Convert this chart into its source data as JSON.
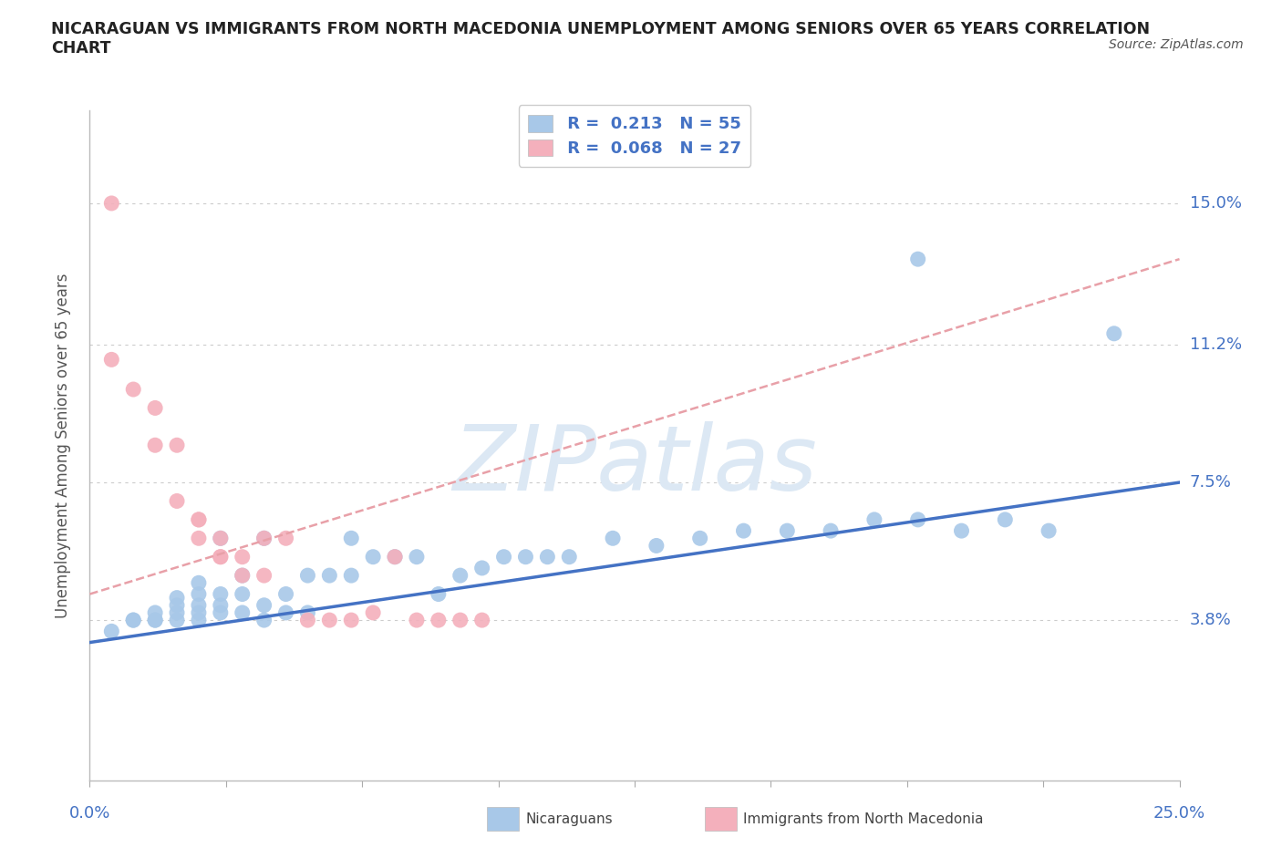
{
  "title": "NICARAGUAN VS IMMIGRANTS FROM NORTH MACEDONIA UNEMPLOYMENT AMONG SENIORS OVER 65 YEARS CORRELATION\nCHART",
  "source": "Source: ZipAtlas.com",
  "ylabel": "Unemployment Among Seniors over 65 years",
  "xlim": [
    0.0,
    0.25
  ],
  "ylim": [
    -0.005,
    0.175
  ],
  "yticks": [
    0.038,
    0.075,
    0.112,
    0.15
  ],
  "ytick_labels": [
    "3.8%",
    "7.5%",
    "11.2%",
    "15.0%"
  ],
  "xticks": [
    0.0,
    0.03125,
    0.0625,
    0.09375,
    0.125,
    0.15625,
    0.1875,
    0.21875,
    0.25
  ],
  "r_blue": "0.213",
  "n_blue": "55",
  "r_pink": "0.068",
  "n_pink": "27",
  "blue_color": "#a8c8e8",
  "pink_color": "#f4b0bc",
  "trend_blue_color": "#4472c4",
  "trend_pink_color": "#e8a0a8",
  "label_color": "#4472c4",
  "watermark_color": "#dce8f4",
  "blue_scatter_x": [
    0.005,
    0.01,
    0.01,
    0.015,
    0.015,
    0.015,
    0.02,
    0.02,
    0.02,
    0.02,
    0.025,
    0.025,
    0.025,
    0.025,
    0.025,
    0.03,
    0.03,
    0.03,
    0.03,
    0.035,
    0.035,
    0.035,
    0.04,
    0.04,
    0.04,
    0.045,
    0.045,
    0.05,
    0.05,
    0.055,
    0.06,
    0.06,
    0.065,
    0.07,
    0.075,
    0.08,
    0.085,
    0.09,
    0.095,
    0.1,
    0.105,
    0.11,
    0.12,
    0.13,
    0.14,
    0.15,
    0.16,
    0.17,
    0.18,
    0.19,
    0.2,
    0.21,
    0.22,
    0.235,
    0.19
  ],
  "blue_scatter_y": [
    0.035,
    0.038,
    0.038,
    0.038,
    0.038,
    0.04,
    0.038,
    0.04,
    0.042,
    0.044,
    0.038,
    0.04,
    0.042,
    0.045,
    0.048,
    0.04,
    0.042,
    0.045,
    0.06,
    0.04,
    0.045,
    0.05,
    0.038,
    0.042,
    0.06,
    0.04,
    0.045,
    0.04,
    0.05,
    0.05,
    0.05,
    0.06,
    0.055,
    0.055,
    0.055,
    0.045,
    0.05,
    0.052,
    0.055,
    0.055,
    0.055,
    0.055,
    0.06,
    0.058,
    0.06,
    0.062,
    0.062,
    0.062,
    0.065,
    0.065,
    0.062,
    0.065,
    0.062,
    0.115,
    0.135
  ],
  "pink_scatter_x": [
    0.005,
    0.01,
    0.015,
    0.015,
    0.02,
    0.02,
    0.025,
    0.025,
    0.025,
    0.03,
    0.03,
    0.03,
    0.035,
    0.035,
    0.04,
    0.04,
    0.045,
    0.05,
    0.055,
    0.06,
    0.065,
    0.07,
    0.075,
    0.08,
    0.085,
    0.09,
    0.005
  ],
  "pink_scatter_y": [
    0.15,
    0.1,
    0.095,
    0.085,
    0.085,
    0.07,
    0.065,
    0.065,
    0.06,
    0.06,
    0.055,
    0.055,
    0.05,
    0.055,
    0.05,
    0.06,
    0.06,
    0.038,
    0.038,
    0.038,
    0.04,
    0.055,
    0.038,
    0.038,
    0.038,
    0.038,
    0.108
  ],
  "blue_trend_x0": 0.0,
  "blue_trend_y0": 0.032,
  "blue_trend_x1": 0.25,
  "blue_trend_y1": 0.075,
  "pink_trend_x0": 0.0,
  "pink_trend_y0": 0.045,
  "pink_trend_x1": 0.25,
  "pink_trend_y1": 0.135
}
